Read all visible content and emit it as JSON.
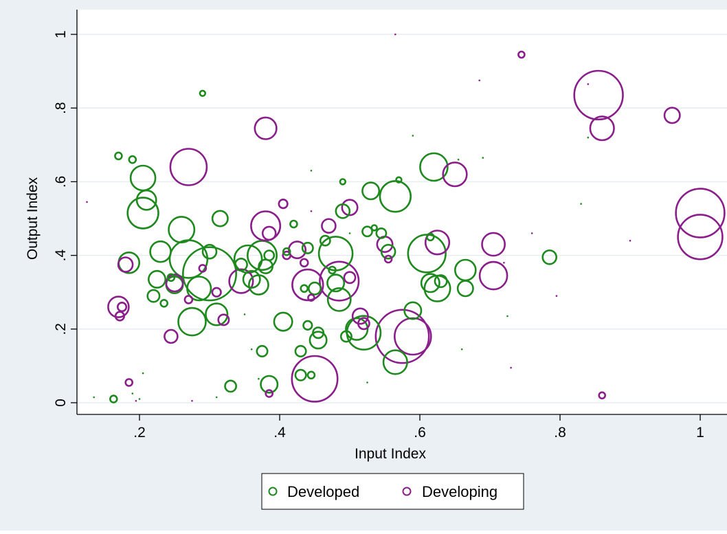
{
  "chart_data": {
    "type": "scatter",
    "subtype": "bubble",
    "xlabel": "Input Index",
    "ylabel": "Output Index",
    "xlim": [
      0.12,
      1.0
    ],
    "ylim": [
      0.0,
      1.0
    ],
    "xticks": [
      0.2,
      0.4,
      0.6,
      0.8,
      1.0
    ],
    "xtick_labels": [
      ".2",
      ".4",
      ".6",
      ".8",
      "1"
    ],
    "yticks": [
      0.0,
      0.2,
      0.4,
      0.6,
      0.8,
      1.0
    ],
    "ytick_labels": [
      "0",
      ".2",
      ".4",
      ".6",
      ".8",
      "1"
    ],
    "grid": "horizontal",
    "legend_position": "bottom-center",
    "colors": {
      "developed": "#1e8a1e",
      "developing": "#8a1e8a",
      "background": "#eaf0f3",
      "plot_background": "#ffffff",
      "grid": "#e6edf1"
    },
    "series": [
      {
        "name": "Developed",
        "color": "#1e8a1e",
        "points": [
          [
            0.163,
            0.01,
            0.5
          ],
          [
            0.17,
            0.67,
            0.5
          ],
          [
            0.185,
            0.38,
            4.5
          ],
          [
            0.19,
            0.66,
            0.5
          ],
          [
            0.205,
            0.61,
            6.5
          ],
          [
            0.205,
            0.515,
            10
          ],
          [
            0.21,
            0.55,
            4
          ],
          [
            0.22,
            0.29,
            1.5
          ],
          [
            0.225,
            0.335,
            3
          ],
          [
            0.23,
            0.41,
            4.5
          ],
          [
            0.235,
            0.27,
            0.5
          ],
          [
            0.245,
            0.34,
            0.5
          ],
          [
            0.25,
            0.32,
            3
          ],
          [
            0.26,
            0.47,
            7
          ],
          [
            0.27,
            0.39,
            15
          ],
          [
            0.275,
            0.22,
            8
          ],
          [
            0.285,
            0.31,
            6
          ],
          [
            0.29,
            0.84,
            0.3
          ],
          [
            0.3,
            0.41,
            2
          ],
          [
            0.3,
            0.35,
            30
          ],
          [
            0.31,
            0.24,
            5
          ],
          [
            0.315,
            0.5,
            2.5
          ],
          [
            0.33,
            0.045,
            1.3
          ],
          [
            0.345,
            0.375,
            1.5
          ],
          [
            0.355,
            0.39,
            8
          ],
          [
            0.36,
            0.335,
            3
          ],
          [
            0.37,
            0.32,
            4
          ],
          [
            0.375,
            0.14,
            1.2
          ],
          [
            0.375,
            0.4,
            9
          ],
          [
            0.38,
            0.37,
            2
          ],
          [
            0.385,
            0.4,
            1
          ],
          [
            0.385,
            0.05,
            3
          ],
          [
            0.405,
            0.22,
            3.5
          ],
          [
            0.41,
            0.41,
            0.5
          ],
          [
            0.42,
            0.485,
            0.5
          ],
          [
            0.43,
            0.075,
            1.2
          ],
          [
            0.43,
            0.14,
            1.2
          ],
          [
            0.435,
            0.31,
            0.5
          ],
          [
            0.44,
            0.21,
            0.8
          ],
          [
            0.44,
            0.42,
            1.2
          ],
          [
            0.445,
            0.075,
            0.5
          ],
          [
            0.45,
            0.31,
            1.5
          ],
          [
            0.455,
            0.19,
            1.2
          ],
          [
            0.455,
            0.17,
            3
          ],
          [
            0.465,
            0.44,
            1
          ],
          [
            0.475,
            0.36,
            0.5
          ],
          [
            0.48,
            0.325,
            3
          ],
          [
            0.48,
            0.405,
            12
          ],
          [
            0.485,
            0.28,
            5.5
          ],
          [
            0.49,
            0.6,
            0.3
          ],
          [
            0.49,
            0.52,
            2
          ],
          [
            0.495,
            0.18,
            1.2
          ],
          [
            0.51,
            0.2,
            5
          ],
          [
            0.52,
            0.19,
            12
          ],
          [
            0.525,
            0.465,
            1
          ],
          [
            0.53,
            0.575,
            3
          ],
          [
            0.535,
            0.475,
            0.3
          ],
          [
            0.545,
            0.46,
            1
          ],
          [
            0.555,
            0.41,
            2
          ],
          [
            0.565,
            0.56,
            10
          ],
          [
            0.565,
            0.11,
            6
          ],
          [
            0.57,
            0.605,
            0.3
          ],
          [
            0.59,
            0.25,
            3
          ],
          [
            0.61,
            0.405,
            15
          ],
          [
            0.615,
            0.45,
            0.5
          ],
          [
            0.615,
            0.325,
            3.5
          ],
          [
            0.62,
            0.64,
            8
          ],
          [
            0.625,
            0.31,
            7
          ],
          [
            0.63,
            0.33,
            1.5
          ],
          [
            0.665,
            0.36,
            4.5
          ],
          [
            0.665,
            0.31,
            2.5
          ],
          [
            0.785,
            0.395,
            2
          ]
        ]
      },
      {
        "name": "Developing",
        "color": "#8a1e8a",
        "points": [
          [
            0.17,
            0.26,
            4.5
          ],
          [
            0.172,
            0.235,
            0.8
          ],
          [
            0.175,
            0.26,
            0.8
          ],
          [
            0.18,
            0.375,
            2.2
          ],
          [
            0.185,
            0.055,
            0.5
          ],
          [
            0.245,
            0.18,
            1.8
          ],
          [
            0.25,
            0.325,
            3
          ],
          [
            0.27,
            0.64,
            14
          ],
          [
            0.27,
            0.28,
            0.6
          ],
          [
            0.29,
            0.365,
            0.5
          ],
          [
            0.31,
            0.3,
            0.8
          ],
          [
            0.32,
            0.225,
            1.2
          ],
          [
            0.345,
            0.33,
            6
          ],
          [
            0.38,
            0.745,
            5
          ],
          [
            0.38,
            0.48,
            9
          ],
          [
            0.385,
            0.46,
            1.8
          ],
          [
            0.385,
            0.025,
            0.5
          ],
          [
            0.405,
            0.54,
            0.8
          ],
          [
            0.41,
            0.4,
            0.6
          ],
          [
            0.425,
            0.415,
            3
          ],
          [
            0.435,
            0.38,
            0.6
          ],
          [
            0.44,
            0.32,
            10
          ],
          [
            0.445,
            0.285,
            0.4
          ],
          [
            0.45,
            0.065,
            22
          ],
          [
            0.47,
            0.48,
            2
          ],
          [
            0.485,
            0.33,
            16
          ],
          [
            0.5,
            0.34,
            1.3
          ],
          [
            0.5,
            0.53,
            2.5
          ],
          [
            0.515,
            0.235,
            2.5
          ],
          [
            0.52,
            0.215,
            1.3
          ],
          [
            0.55,
            0.43,
            2.5
          ],
          [
            0.555,
            0.39,
            0.5
          ],
          [
            0.575,
            0.18,
            30
          ],
          [
            0.59,
            0.18,
            14
          ],
          [
            0.625,
            0.435,
            6
          ],
          [
            0.65,
            0.62,
            6
          ],
          [
            0.705,
            0.43,
            5.5
          ],
          [
            0.705,
            0.345,
            8
          ],
          [
            0.745,
            0.945,
            0.4
          ],
          [
            0.855,
            0.835,
            25
          ],
          [
            0.86,
            0.745,
            6
          ],
          [
            0.86,
            0.02,
            0.4
          ],
          [
            0.96,
            0.78,
            2.5
          ],
          [
            1.0,
            0.515,
            25
          ],
          [
            1.0,
            0.45,
            21
          ]
        ]
      }
    ],
    "tiny_points": [
      [
        0.125,
        0.545,
        "developing"
      ],
      [
        0.135,
        0.015,
        "developed"
      ],
      [
        0.19,
        0.025,
        "developed"
      ],
      [
        0.195,
        0.005,
        "developing"
      ],
      [
        0.2,
        0.01,
        "developed"
      ],
      [
        0.205,
        0.08,
        "developed"
      ],
      [
        0.275,
        0.005,
        "developing"
      ],
      [
        0.31,
        0.015,
        "developed"
      ],
      [
        0.35,
        0.24,
        "developed"
      ],
      [
        0.36,
        0.145,
        "developed"
      ],
      [
        0.37,
        0.065,
        "developed"
      ],
      [
        0.445,
        0.63,
        "developed"
      ],
      [
        0.445,
        0.52,
        "developing"
      ],
      [
        0.5,
        0.46,
        "developed"
      ],
      [
        0.525,
        0.055,
        "developed"
      ],
      [
        0.565,
        1.0,
        "developing"
      ],
      [
        0.59,
        0.725,
        "developed"
      ],
      [
        0.655,
        0.66,
        "developed"
      ],
      [
        0.66,
        0.145,
        "developed"
      ],
      [
        0.685,
        0.875,
        "developing"
      ],
      [
        0.69,
        0.665,
        "developed"
      ],
      [
        0.72,
        0.38,
        "developing"
      ],
      [
        0.725,
        0.235,
        "developed"
      ],
      [
        0.73,
        0.095,
        "developing"
      ],
      [
        0.76,
        0.46,
        "developing"
      ],
      [
        0.795,
        0.29,
        "developing"
      ],
      [
        0.84,
        0.865,
        "developing"
      ],
      [
        0.84,
        0.72,
        "developed"
      ],
      [
        0.9,
        0.44,
        "developing"
      ],
      [
        0.83,
        0.54,
        "developed"
      ]
    ]
  },
  "legend": {
    "items": [
      {
        "label": "Developed",
        "color": "#1e8a1e"
      },
      {
        "label": "Developing",
        "color": "#8a1e8a"
      }
    ]
  }
}
